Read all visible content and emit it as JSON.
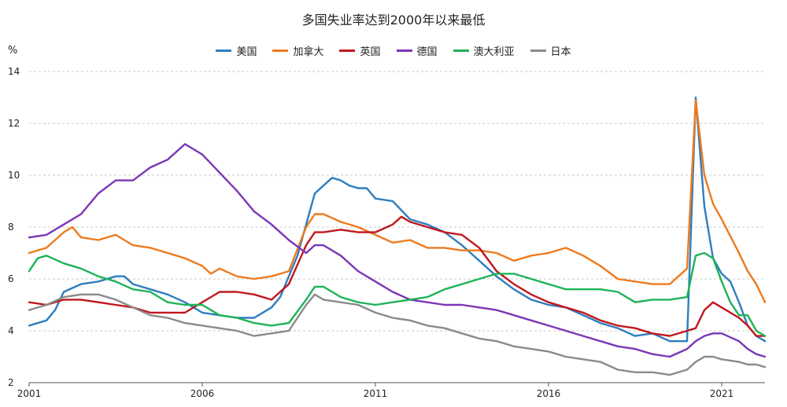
{
  "chart_data": {
    "type": "line",
    "title": "多国失业率达到2000年以来最低",
    "ylabel": "%",
    "xlabel": "",
    "ylim": [
      2,
      14
    ],
    "xlim": [
      2001,
      2022.25
    ],
    "yticks": [
      2,
      4,
      6,
      8,
      10,
      12,
      14
    ],
    "xticks": [
      "2001",
      "2006",
      "2011",
      "2016",
      "2021"
    ],
    "grid": "horizontal-dashed",
    "legend_position": "top",
    "series": [
      {
        "name": "美国",
        "color": "#2E7DBF",
        "x": [
          2001.0,
          2001.5,
          2001.75,
          2002.0,
          2002.5,
          2003.0,
          2003.5,
          2003.75,
          2004.0,
          2004.5,
          2005.0,
          2005.5,
          2006.0,
          2006.5,
          2007.0,
          2007.5,
          2008.0,
          2008.25,
          2008.5,
          2008.75,
          2009.0,
          2009.25,
          2009.5,
          2009.75,
          2010.0,
          2010.25,
          2010.5,
          2010.75,
          2011.0,
          2011.5,
          2012.0,
          2012.5,
          2013.0,
          2013.5,
          2014.0,
          2014.5,
          2015.0,
          2015.5,
          2016.0,
          2016.5,
          2017.0,
          2017.5,
          2018.0,
          2018.5,
          2019.0,
          2019.5,
          2019.75,
          2020.0,
          2020.25,
          2020.5,
          2020.75,
          2021.0,
          2021.25,
          2021.5,
          2021.75,
          2022.0,
          2022.25
        ],
        "values": [
          4.2,
          4.4,
          4.8,
          5.5,
          5.8,
          5.9,
          6.1,
          6.1,
          5.8,
          5.6,
          5.4,
          5.1,
          4.7,
          4.6,
          4.5,
          4.5,
          4.9,
          5.3,
          6.1,
          6.9,
          8.1,
          9.3,
          9.6,
          9.9,
          9.8,
          9.6,
          9.5,
          9.5,
          9.1,
          9.0,
          8.3,
          8.1,
          7.8,
          7.3,
          6.7,
          6.1,
          5.6,
          5.2,
          5.0,
          4.9,
          4.6,
          4.3,
          4.1,
          3.8,
          3.9,
          3.6,
          3.6,
          3.6,
          13.0,
          8.8,
          6.8,
          6.2,
          5.9,
          5.1,
          4.2,
          3.8,
          3.6
        ]
      },
      {
        "name": "加拿大",
        "color": "#EE7A1D",
        "x": [
          2001.0,
          2001.5,
          2002.0,
          2002.25,
          2002.5,
          2003.0,
          2003.5,
          2004.0,
          2004.5,
          2005.0,
          2005.5,
          2006.0,
          2006.25,
          2006.5,
          2007.0,
          2007.5,
          2008.0,
          2008.5,
          2009.0,
          2009.25,
          2009.5,
          2010.0,
          2010.5,
          2011.0,
          2011.5,
          2012.0,
          2012.5,
          2013.0,
          2013.5,
          2014.0,
          2014.5,
          2015.0,
          2015.5,
          2016.0,
          2016.5,
          2017.0,
          2017.5,
          2018.0,
          2018.5,
          2019.0,
          2019.5,
          2020.0,
          2020.25,
          2020.5,
          2020.75,
          2021.0,
          2021.5,
          2021.75,
          2022.0,
          2022.25
        ],
        "values": [
          7.0,
          7.2,
          7.8,
          8.0,
          7.6,
          7.5,
          7.7,
          7.3,
          7.2,
          7.0,
          6.8,
          6.5,
          6.2,
          6.4,
          6.1,
          6.0,
          6.1,
          6.3,
          8.0,
          8.5,
          8.5,
          8.2,
          8.0,
          7.7,
          7.4,
          7.5,
          7.2,
          7.2,
          7.1,
          7.1,
          7.0,
          6.7,
          6.9,
          7.0,
          7.2,
          6.9,
          6.5,
          6.0,
          5.9,
          5.8,
          5.8,
          6.4,
          12.9,
          10.0,
          8.9,
          8.3,
          7.0,
          6.3,
          5.8,
          5.1
        ]
      },
      {
        "name": "英国",
        "color": "#C0171D",
        "x": [
          2001.0,
          2001.5,
          2002.0,
          2002.5,
          2003.0,
          2003.5,
          2004.0,
          2004.5,
          2005.0,
          2005.5,
          2006.0,
          2006.25,
          2006.5,
          2007.0,
          2007.5,
          2008.0,
          2008.5,
          2009.0,
          2009.25,
          2009.5,
          2010.0,
          2010.5,
          2011.0,
          2011.5,
          2011.75,
          2012.0,
          2012.5,
          2013.0,
          2013.5,
          2014.0,
          2014.5,
          2015.0,
          2015.5,
          2016.0,
          2016.5,
          2017.0,
          2017.5,
          2018.0,
          2018.5,
          2019.0,
          2019.5,
          2020.0,
          2020.25,
          2020.5,
          2020.75,
          2021.0,
          2021.5,
          2021.75,
          2022.0,
          2022.25
        ],
        "values": [
          5.1,
          5.0,
          5.2,
          5.2,
          5.1,
          5.0,
          4.9,
          4.7,
          4.7,
          4.7,
          5.1,
          5.3,
          5.5,
          5.5,
          5.4,
          5.2,
          5.8,
          7.3,
          7.8,
          7.8,
          7.9,
          7.8,
          7.8,
          8.1,
          8.4,
          8.2,
          8.0,
          7.8,
          7.7,
          7.2,
          6.3,
          5.8,
          5.4,
          5.1,
          4.9,
          4.7,
          4.4,
          4.2,
          4.1,
          3.9,
          3.8,
          4.0,
          4.1,
          4.8,
          5.1,
          4.9,
          4.5,
          4.2,
          3.8,
          3.8
        ]
      },
      {
        "name": "德国",
        "color": "#7B36B5",
        "x": [
          2001.0,
          2001.5,
          2002.0,
          2002.5,
          2003.0,
          2003.5,
          2004.0,
          2004.5,
          2005.0,
          2005.5,
          2006.0,
          2006.5,
          2007.0,
          2007.5,
          2008.0,
          2008.5,
          2009.0,
          2009.25,
          2009.5,
          2010.0,
          2010.5,
          2011.0,
          2011.5,
          2012.0,
          2012.5,
          2013.0,
          2013.5,
          2014.0,
          2014.5,
          2015.0,
          2015.5,
          2016.0,
          2016.5,
          2017.0,
          2017.5,
          2018.0,
          2018.5,
          2019.0,
          2019.5,
          2020.0,
          2020.25,
          2020.5,
          2020.75,
          2021.0,
          2021.5,
          2021.75,
          2022.0,
          2022.25
        ],
        "values": [
          7.6,
          7.7,
          8.1,
          8.5,
          9.3,
          9.8,
          9.8,
          10.3,
          10.6,
          11.2,
          10.8,
          10.1,
          9.4,
          8.6,
          8.1,
          7.5,
          7.0,
          7.3,
          7.3,
          6.9,
          6.3,
          5.9,
          5.5,
          5.2,
          5.1,
          5.0,
          5.0,
          4.9,
          4.8,
          4.6,
          4.4,
          4.2,
          4.0,
          3.8,
          3.6,
          3.4,
          3.3,
          3.1,
          3.0,
          3.3,
          3.6,
          3.8,
          3.9,
          3.9,
          3.6,
          3.3,
          3.1,
          3.0
        ]
      },
      {
        "name": "澳大利亚",
        "color": "#1DB356",
        "x": [
          2001.0,
          2001.25,
          2001.5,
          2002.0,
          2002.5,
          2003.0,
          2003.5,
          2004.0,
          2004.5,
          2005.0,
          2005.5,
          2006.0,
          2006.5,
          2007.0,
          2007.5,
          2008.0,
          2008.5,
          2009.0,
          2009.25,
          2009.5,
          2010.0,
          2010.5,
          2011.0,
          2011.5,
          2012.0,
          2012.5,
          2013.0,
          2013.5,
          2014.0,
          2014.5,
          2015.0,
          2015.5,
          2016.0,
          2016.5,
          2017.0,
          2017.5,
          2018.0,
          2018.5,
          2019.0,
          2019.5,
          2020.0,
          2020.25,
          2020.5,
          2020.75,
          2021.0,
          2021.25,
          2021.5,
          2021.75,
          2022.0,
          2022.25
        ],
        "values": [
          6.3,
          6.8,
          6.9,
          6.6,
          6.4,
          6.1,
          5.9,
          5.6,
          5.5,
          5.1,
          5.0,
          5.0,
          4.6,
          4.5,
          4.3,
          4.2,
          4.3,
          5.2,
          5.7,
          5.7,
          5.3,
          5.1,
          5.0,
          5.1,
          5.2,
          5.3,
          5.6,
          5.8,
          6.0,
          6.2,
          6.2,
          6.0,
          5.8,
          5.6,
          5.6,
          5.6,
          5.5,
          5.1,
          5.2,
          5.2,
          5.3,
          6.9,
          7.0,
          6.8,
          5.9,
          5.1,
          4.6,
          4.6,
          4.0,
          3.8
        ]
      },
      {
        "name": "日本",
        "color": "#8A8A8A",
        "x": [
          2001.0,
          2001.5,
          2002.0,
          2002.5,
          2003.0,
          2003.5,
          2004.0,
          2004.5,
          2005.0,
          2005.5,
          2006.0,
          2006.5,
          2007.0,
          2007.5,
          2008.0,
          2008.5,
          2009.0,
          2009.25,
          2009.5,
          2010.0,
          2010.5,
          2011.0,
          2011.5,
          2012.0,
          2012.5,
          2013.0,
          2013.5,
          2014.0,
          2014.5,
          2015.0,
          2015.5,
          2016.0,
          2016.5,
          2017.0,
          2017.5,
          2018.0,
          2018.5,
          2019.0,
          2019.5,
          2020.0,
          2020.25,
          2020.5,
          2020.75,
          2021.0,
          2021.5,
          2021.75,
          2022.0,
          2022.25
        ],
        "values": [
          4.8,
          5.0,
          5.3,
          5.4,
          5.4,
          5.2,
          4.9,
          4.6,
          4.5,
          4.3,
          4.2,
          4.1,
          4.0,
          3.8,
          3.9,
          4.0,
          5.0,
          5.4,
          5.2,
          5.1,
          5.0,
          4.7,
          4.5,
          4.4,
          4.2,
          4.1,
          3.9,
          3.7,
          3.6,
          3.4,
          3.3,
          3.2,
          3.0,
          2.9,
          2.8,
          2.5,
          2.4,
          2.4,
          2.3,
          2.5,
          2.8,
          3.0,
          3.0,
          2.9,
          2.8,
          2.7,
          2.7,
          2.6
        ]
      }
    ]
  }
}
